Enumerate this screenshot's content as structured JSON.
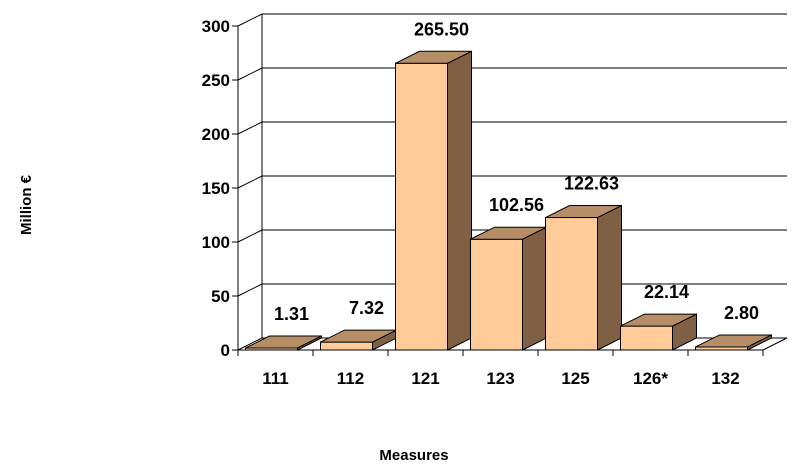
{
  "chart_data": {
    "type": "bar",
    "style": "3d-column",
    "categories": [
      "111",
      "112",
      "121",
      "123",
      "125",
      "126*",
      "132"
    ],
    "values": [
      1.31,
      7.32,
      265.5,
      102.56,
      122.63,
      22.14,
      2.8
    ],
    "data_labels": [
      "1.31",
      "7.32",
      "265.50",
      "102.56",
      "122.63",
      "22.14",
      "2.80"
    ],
    "xlabel": "Measures",
    "ylabel": "Million €",
    "ylim": [
      0,
      300
    ],
    "yticks": [
      "0",
      "50",
      "100",
      "150",
      "200",
      "250",
      "300"
    ],
    "grid": true,
    "legend": "none",
    "colors": {
      "bar_front": "#FFCC99",
      "bar_side": "#7F6045",
      "bar_top": "#B58E67",
      "outline": "#000000",
      "grid": "#000000"
    }
  }
}
